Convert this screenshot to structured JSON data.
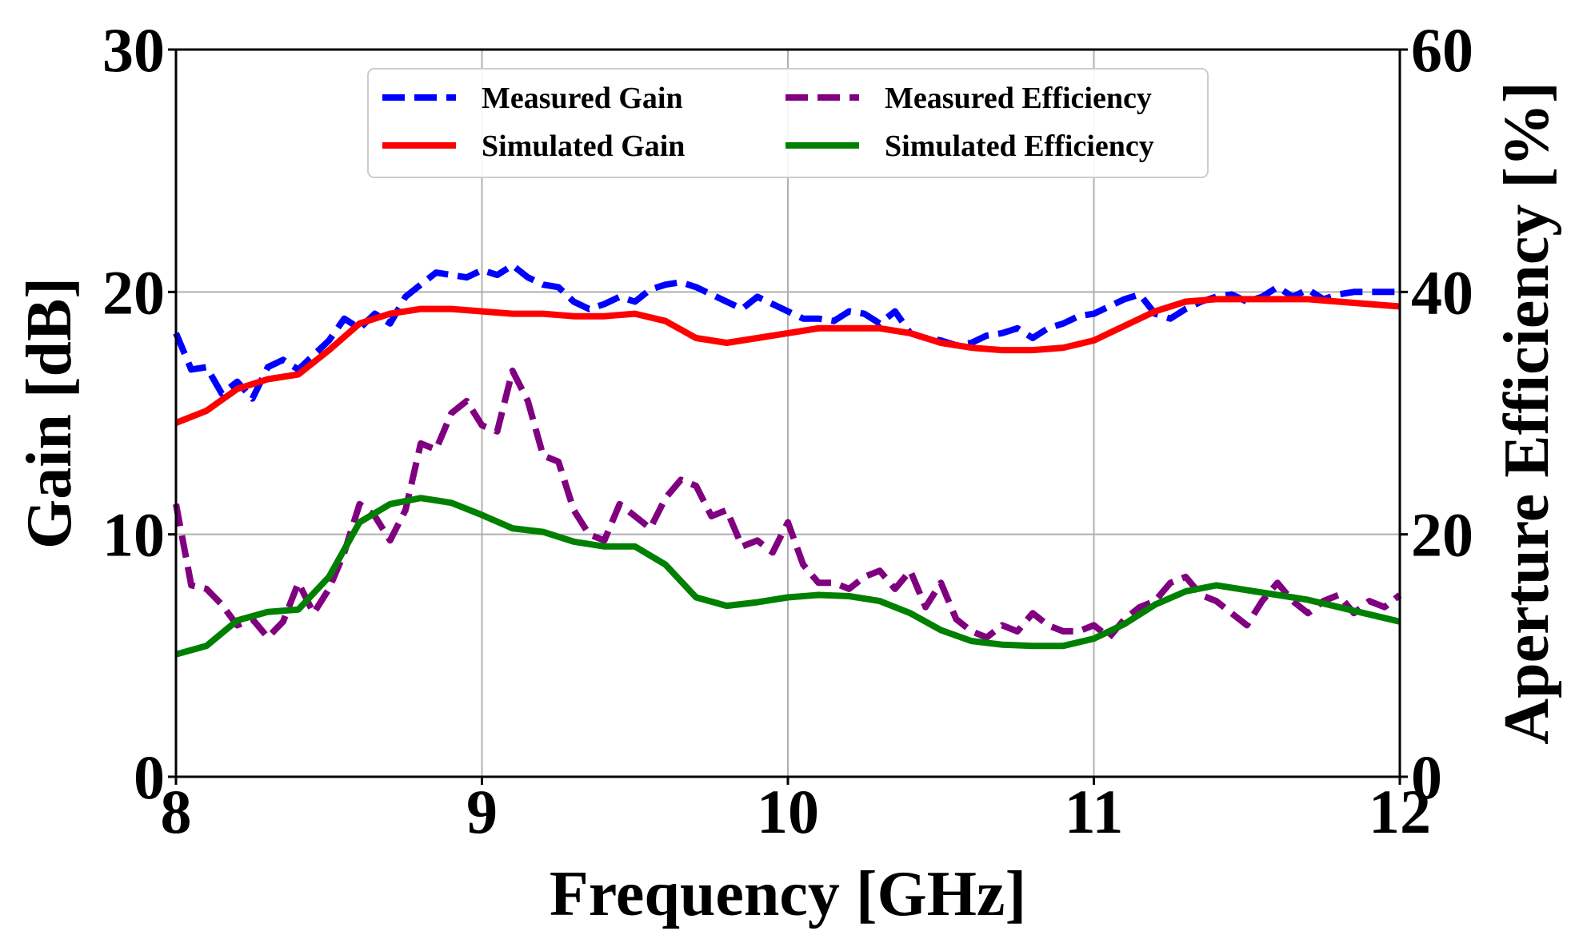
{
  "chart_data": {
    "type": "line",
    "title": "",
    "xlabel": "Frequency [GHz]",
    "ylabel": "Gain [dB]",
    "y2label": "Aperture Efficiency [%]",
    "xlim": [
      8,
      12
    ],
    "ylim": [
      0,
      30
    ],
    "y2lim": [
      0,
      60
    ],
    "xticks": [
      8,
      9,
      10,
      11,
      12
    ],
    "yticks": [
      0,
      10,
      20,
      30
    ],
    "y2ticks": [
      0,
      20,
      40,
      60
    ],
    "grid": true,
    "legend_position": "top-center",
    "series": [
      {
        "name": "Measured Gain",
        "axis": "left",
        "style": "dashed",
        "color": "#0000ff",
        "x": [
          8.0,
          8.05,
          8.1,
          8.15,
          8.2,
          8.25,
          8.3,
          8.35,
          8.4,
          8.45,
          8.5,
          8.55,
          8.6,
          8.65,
          8.7,
          8.75,
          8.8,
          8.85,
          8.9,
          8.95,
          9.0,
          9.05,
          9.1,
          9.15,
          9.2,
          9.25,
          9.3,
          9.35,
          9.4,
          9.45,
          9.5,
          9.55,
          9.6,
          9.65,
          9.7,
          9.75,
          9.8,
          9.85,
          9.9,
          9.95,
          10.0,
          10.05,
          10.1,
          10.15,
          10.2,
          10.25,
          10.3,
          10.35,
          10.4,
          10.45,
          10.5,
          10.55,
          10.6,
          10.65,
          10.7,
          10.75,
          10.8,
          10.85,
          10.9,
          10.95,
          11.0,
          11.05,
          11.1,
          11.15,
          11.2,
          11.25,
          11.3,
          11.35,
          11.4,
          11.45,
          11.5,
          11.55,
          11.6,
          11.65,
          11.7,
          11.75,
          11.8,
          11.85,
          11.9,
          11.95,
          12.0
        ],
        "y": [
          18.3,
          16.8,
          16.9,
          15.8,
          16.3,
          15.6,
          16.9,
          17.2,
          16.8,
          17.4,
          18.0,
          18.9,
          18.5,
          19.1,
          18.7,
          19.8,
          20.3,
          20.8,
          20.7,
          20.6,
          20.9,
          20.7,
          21.1,
          20.6,
          20.3,
          20.2,
          19.6,
          19.3,
          19.5,
          19.8,
          19.6,
          20.1,
          20.3,
          20.4,
          20.2,
          19.9,
          19.6,
          19.3,
          19.8,
          19.5,
          19.2,
          18.9,
          18.9,
          18.8,
          19.2,
          19.1,
          18.7,
          19.2,
          18.3,
          18.1,
          18.0,
          17.8,
          17.9,
          18.2,
          18.3,
          18.5,
          18.1,
          18.5,
          18.7,
          19.0,
          19.1,
          19.4,
          19.7,
          19.9,
          19.1,
          18.9,
          19.3,
          19.6,
          19.8,
          19.9,
          19.6,
          19.8,
          20.2,
          19.8,
          20.1,
          19.7,
          19.9,
          20.0,
          20.0,
          20.0,
          20.0
        ]
      },
      {
        "name": "Simulated Gain",
        "axis": "left",
        "style": "solid",
        "color": "#ff0000",
        "x": [
          8.0,
          8.1,
          8.2,
          8.3,
          8.4,
          8.5,
          8.6,
          8.7,
          8.8,
          8.9,
          9.0,
          9.1,
          9.2,
          9.3,
          9.4,
          9.5,
          9.6,
          9.7,
          9.8,
          9.9,
          10.0,
          10.1,
          10.2,
          10.3,
          10.4,
          10.5,
          10.6,
          10.7,
          10.8,
          10.9,
          11.0,
          11.1,
          11.2,
          11.3,
          11.4,
          11.5,
          11.6,
          11.7,
          11.8,
          11.9,
          12.0
        ],
        "y": [
          14.6,
          15.1,
          16.0,
          16.4,
          16.6,
          17.6,
          18.7,
          19.1,
          19.3,
          19.3,
          19.2,
          19.1,
          19.1,
          19.0,
          19.0,
          19.1,
          18.8,
          18.1,
          17.9,
          18.1,
          18.3,
          18.5,
          18.5,
          18.5,
          18.3,
          17.9,
          17.7,
          17.6,
          17.6,
          17.7,
          18.0,
          18.6,
          19.2,
          19.6,
          19.7,
          19.7,
          19.7,
          19.7,
          19.6,
          19.5,
          19.4
        ]
      },
      {
        "name": "Measured Efficiency",
        "axis": "right",
        "style": "dashed",
        "color": "#800080",
        "x": [
          8.0,
          8.05,
          8.1,
          8.15,
          8.2,
          8.25,
          8.3,
          8.35,
          8.4,
          8.45,
          8.5,
          8.55,
          8.6,
          8.65,
          8.7,
          8.75,
          8.8,
          8.85,
          8.9,
          8.95,
          9.0,
          9.05,
          9.1,
          9.15,
          9.2,
          9.25,
          9.3,
          9.35,
          9.4,
          9.45,
          9.5,
          9.55,
          9.6,
          9.65,
          9.7,
          9.75,
          9.8,
          9.85,
          9.9,
          9.95,
          10.0,
          10.05,
          10.1,
          10.15,
          10.2,
          10.25,
          10.3,
          10.35,
          10.4,
          10.45,
          10.5,
          10.55,
          10.6,
          10.65,
          10.7,
          10.75,
          10.8,
          10.85,
          10.9,
          10.95,
          11.0,
          11.05,
          11.1,
          11.15,
          11.2,
          11.25,
          11.3,
          11.35,
          11.4,
          11.45,
          11.5,
          11.55,
          11.6,
          11.65,
          11.7,
          11.75,
          11.8,
          11.85,
          11.9,
          11.95,
          12.0
        ],
        "y": [
          22.5,
          15.8,
          15.5,
          14.2,
          12.5,
          13.0,
          11.5,
          12.8,
          16.0,
          13.5,
          15.5,
          18.5,
          22.5,
          21.5,
          19.5,
          22.0,
          27.5,
          27.0,
          30.0,
          31.0,
          29.0,
          28.5,
          33.5,
          31.0,
          26.5,
          26.0,
          22.0,
          20.0,
          19.5,
          22.5,
          21.5,
          20.5,
          23.0,
          24.5,
          24.0,
          21.5,
          22.0,
          19.0,
          19.5,
          18.5,
          21.0,
          17.5,
          16.0,
          16.0,
          15.5,
          16.5,
          17.0,
          15.5,
          17.0,
          14.0,
          16.0,
          13.0,
          12.0,
          11.5,
          12.5,
          12.0,
          13.5,
          12.5,
          12.0,
          12.0,
          12.5,
          11.5,
          13.0,
          14.0,
          14.5,
          16.0,
          16.5,
          15.0,
          14.5,
          13.5,
          12.5,
          14.5,
          16.0,
          14.5,
          13.5,
          14.5,
          15.0,
          13.5,
          14.5,
          14.0,
          15.0
        ]
      },
      {
        "name": "Simulated Efficiency",
        "axis": "right",
        "style": "solid",
        "color": "#008000",
        "x": [
          8.0,
          8.1,
          8.2,
          8.3,
          8.4,
          8.5,
          8.6,
          8.7,
          8.8,
          8.9,
          9.0,
          9.1,
          9.2,
          9.3,
          9.4,
          9.5,
          9.6,
          9.7,
          9.8,
          9.9,
          10.0,
          10.1,
          10.2,
          10.3,
          10.4,
          10.5,
          10.6,
          10.7,
          10.8,
          10.9,
          11.0,
          11.1,
          11.2,
          11.3,
          11.4,
          11.5,
          11.6,
          11.7,
          11.8,
          11.9,
          12.0
        ],
        "y": [
          10.1,
          10.8,
          12.9,
          13.6,
          13.8,
          16.5,
          21.0,
          22.5,
          23.0,
          22.6,
          21.6,
          20.5,
          20.2,
          19.4,
          19.0,
          19.0,
          17.5,
          14.8,
          14.1,
          14.4,
          14.8,
          15.0,
          14.9,
          14.5,
          13.5,
          12.1,
          11.2,
          10.9,
          10.8,
          10.8,
          11.4,
          12.6,
          14.2,
          15.3,
          15.8,
          15.4,
          15.0,
          14.6,
          14.0,
          13.4,
          12.8
        ]
      }
    ]
  }
}
